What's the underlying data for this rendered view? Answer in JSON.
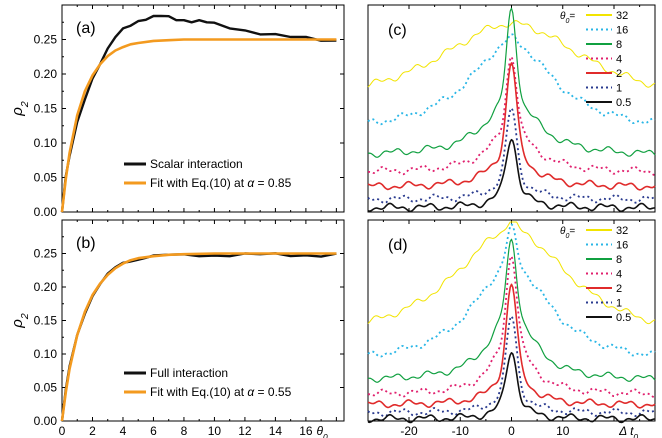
{
  "chart_data": [
    {
      "panel": "(a)",
      "type": "line",
      "ylabel": "ρ2",
      "ylabel_main": "ρ",
      "ylabel_sub": "2",
      "xlim": [
        0,
        18.5
      ],
      "ylim": [
        0,
        0.3
      ],
      "yticks": [
        "0.00",
        "0.05",
        "0.10",
        "0.15",
        "0.20",
        "0.25"
      ],
      "legend_position": "bottom-right",
      "series": [
        {
          "name": "Scalar interaction",
          "color": "#111111",
          "x": [
            0,
            0.25,
            0.5,
            1,
            1.5,
            2,
            2.5,
            3,
            3.5,
            4,
            4.5,
            5,
            5.5,
            6,
            6.5,
            7,
            7.5,
            8,
            8.5,
            9,
            9.5,
            10,
            11,
            12,
            13,
            14,
            15,
            16,
            17,
            18
          ],
          "y": [
            0.0,
            0.05,
            0.08,
            0.13,
            0.165,
            0.195,
            0.215,
            0.235,
            0.252,
            0.265,
            0.272,
            0.278,
            0.28,
            0.282,
            0.283,
            0.282,
            0.28,
            0.279,
            0.277,
            0.276,
            0.274,
            0.272,
            0.268,
            0.264,
            0.26,
            0.256,
            0.253,
            0.251,
            0.25,
            0.249
          ]
        },
        {
          "name": "Fit with Eq.(10) at α = 0.85",
          "name_prefix": "Fit with Eq.(10) at ",
          "name_param": "α",
          "name_value": " = 0.85",
          "color": "#f39a1f",
          "x": [
            0,
            0.25,
            0.5,
            1,
            1.5,
            2,
            2.5,
            3,
            3.5,
            4,
            4.5,
            5,
            6,
            7,
            8,
            10,
            12,
            14,
            16,
            18
          ],
          "y": [
            0.0,
            0.048,
            0.086,
            0.14,
            0.175,
            0.198,
            0.214,
            0.226,
            0.234,
            0.239,
            0.243,
            0.245,
            0.248,
            0.249,
            0.25,
            0.25,
            0.25,
            0.25,
            0.25,
            0.25
          ]
        }
      ]
    },
    {
      "panel": "(b)",
      "type": "line",
      "ylabel": "ρ2",
      "ylabel_main": "ρ",
      "ylabel_sub": "2",
      "xlabel": "θ0",
      "xlabel_main": "θ",
      "xlabel_sub": "0",
      "xlim": [
        0,
        18.5
      ],
      "ylim": [
        0,
        0.3
      ],
      "xticks": [
        "0",
        "2",
        "4",
        "6",
        "8",
        "10",
        "12",
        "14",
        "16"
      ],
      "yticks": [
        "0.00",
        "0.05",
        "0.10",
        "0.15",
        "0.20",
        "0.25"
      ],
      "legend_position": "bottom-right",
      "series": [
        {
          "name": "Full interaction",
          "color": "#111111",
          "x": [
            0,
            0.25,
            0.5,
            1,
            1.5,
            2,
            2.5,
            3,
            3.5,
            4,
            4.5,
            5,
            5.5,
            6,
            7,
            8,
            9,
            10,
            11,
            12,
            13,
            14,
            15,
            16,
            17,
            18
          ],
          "y": [
            0.0,
            0.045,
            0.08,
            0.128,
            0.162,
            0.188,
            0.205,
            0.218,
            0.228,
            0.235,
            0.24,
            0.242,
            0.245,
            0.245,
            0.247,
            0.247,
            0.248,
            0.248,
            0.248,
            0.248,
            0.248,
            0.248,
            0.248,
            0.248,
            0.248,
            0.248
          ]
        },
        {
          "name": "Fit with Eq.(10) at α = 0.55",
          "name_prefix": "Fit with Eq.(10) at ",
          "name_param": "α",
          "name_value": " = 0.55",
          "color": "#f39a1f",
          "x": [
            0,
            0.25,
            0.5,
            1,
            1.5,
            2,
            2.5,
            3,
            3.5,
            4,
            4.5,
            5,
            6,
            7,
            8,
            10,
            12,
            14,
            16,
            18
          ],
          "y": [
            0.0,
            0.043,
            0.078,
            0.128,
            0.163,
            0.188,
            0.205,
            0.218,
            0.228,
            0.235,
            0.24,
            0.243,
            0.246,
            0.248,
            0.249,
            0.25,
            0.25,
            0.25,
            0.25,
            0.25
          ]
        }
      ]
    },
    {
      "panel": "(c)",
      "type": "line",
      "xlim": [
        -28,
        28
      ],
      "ylim": [
        0,
        1
      ],
      "legend_title": "θ0=",
      "legend_title_main": "θ",
      "legend_title_sub": "0",
      "legend_title_end": "=",
      "legend_position": "top-right",
      "series": [
        {
          "name": "32",
          "dash": "solid",
          "color": "#f2e400",
          "base": 0.49,
          "peak": 0.42,
          "width": 18,
          "spike": 0,
          "sw": 1
        },
        {
          "name": "16",
          "dash": "dotted",
          "color": "#29b6e6",
          "base": 0.38,
          "peak": 0.44,
          "width": 10,
          "spike": 0.02,
          "sw": 1
        },
        {
          "name": "8",
          "dash": "solid",
          "color": "#10a040",
          "base": 0.27,
          "peak": 0.28,
          "width": 6,
          "spike": 0.43,
          "sw": 1.2
        },
        {
          "name": "4",
          "dash": "dotted",
          "color": "#e0206e",
          "base": 0.19,
          "peak": 0.22,
          "width": 5,
          "spike": 0.35,
          "sw": 1.3
        },
        {
          "name": "2",
          "dash": "solid",
          "color": "#e02b2b",
          "base": 0.12,
          "peak": 0.2,
          "width": 4,
          "spike": 0.4,
          "sw": 1.6
        },
        {
          "name": "1",
          "dash": "dotted",
          "color": "#2a3b8f",
          "base": 0.06,
          "peak": 0.14,
          "width": 3.2,
          "spike": 0.3,
          "sw": 1.6
        },
        {
          "name": "0.5",
          "dash": "solid",
          "color": "#111111",
          "base": 0.02,
          "peak": 0.14,
          "width": 2.6,
          "spike": 0.2,
          "sw": 1.6
        }
      ]
    },
    {
      "panel": "(d)",
      "type": "line",
      "xlabel": "Δ t0",
      "xlabel_main": "Δ t",
      "xlabel_sub": "0",
      "xlim": [
        -28,
        28
      ],
      "ylim": [
        0,
        1
      ],
      "xticks": [
        "-20",
        "-10",
        "0",
        "10"
      ],
      "legend_title": "θ0=",
      "legend_title_main": "θ",
      "legend_title_sub": "0",
      "legend_title_end": "=",
      "legend_position": "top-right",
      "series": [
        {
          "name": "32",
          "dash": "solid",
          "color": "#f2e400",
          "base": 0.38,
          "peak": 0.57,
          "width": 14,
          "spike": 0.05,
          "sw": 1
        },
        {
          "name": "16",
          "dash": "dotted",
          "color": "#29b6e6",
          "base": 0.28,
          "peak": 0.5,
          "width": 9,
          "spike": 0.18,
          "sw": 1
        },
        {
          "name": "8",
          "dash": "solid",
          "color": "#10a040",
          "base": 0.2,
          "peak": 0.35,
          "width": 5,
          "spike": 0.35,
          "sw": 1.2
        },
        {
          "name": "4",
          "dash": "dotted",
          "color": "#e0206e",
          "base": 0.13,
          "peak": 0.3,
          "width": 4,
          "spike": 0.4,
          "sw": 1.3
        },
        {
          "name": "2",
          "dash": "solid",
          "color": "#e02b2b",
          "base": 0.08,
          "peak": 0.22,
          "width": 3.2,
          "spike": 0.38,
          "sw": 1.6
        },
        {
          "name": "1",
          "dash": "dotted",
          "color": "#2a3b8f",
          "base": 0.04,
          "peak": 0.16,
          "width": 2.8,
          "spike": 0.32,
          "sw": 1.6
        },
        {
          "name": "0.5",
          "dash": "solid",
          "color": "#111111",
          "base": 0.01,
          "peak": 0.14,
          "width": 2.4,
          "spike": 0.2,
          "sw": 1.6
        }
      ]
    }
  ]
}
